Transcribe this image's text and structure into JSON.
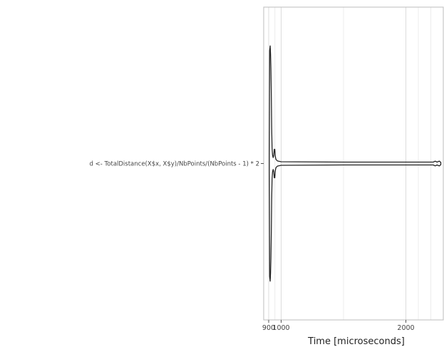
{
  "chart_data": {
    "type": "violin",
    "title": "",
    "xlabel": "Time [microseconds]",
    "ylabel": "",
    "orientation": "horizontal",
    "xlim": [
      860,
      2300
    ],
    "grid": true,
    "categories": [
      "d <- TotalDistance(X$x, X$y)/NbPoints/(NbPoints - 1) * 2"
    ],
    "x_ticks": [
      {
        "value": 900,
        "label": "900"
      },
      {
        "value": 1000,
        "label": "1000"
      },
      {
        "value": 2000,
        "label": "2000"
      }
    ],
    "minor_gridlines": [
      950,
      1500,
      2100,
      2200
    ],
    "series": [
      {
        "category_index": 0,
        "color": "#222222",
        "density_profile": [
          {
            "x": 905,
            "half_width": 0.06
          },
          {
            "x": 908,
            "half_width": 0.95
          },
          {
            "x": 912,
            "half_width": 0.99
          },
          {
            "x": 915,
            "half_width": 0.92
          },
          {
            "x": 918,
            "half_width": 0.8
          },
          {
            "x": 921,
            "half_width": 0.58
          },
          {
            "x": 924,
            "half_width": 0.3
          },
          {
            "x": 927,
            "half_width": 0.13
          },
          {
            "x": 931,
            "half_width": 0.07
          },
          {
            "x": 936,
            "half_width": 0.05
          },
          {
            "x": 941,
            "half_width": 0.07
          },
          {
            "x": 945,
            "half_width": 0.12
          },
          {
            "x": 949,
            "half_width": 0.12
          },
          {
            "x": 953,
            "half_width": 0.06
          },
          {
            "x": 958,
            "half_width": 0.035
          },
          {
            "x": 970,
            "half_width": 0.022
          },
          {
            "x": 1000,
            "half_width": 0.015
          },
          {
            "x": 1500,
            "half_width": 0.012
          },
          {
            "x": 2220,
            "half_width": 0.012
          },
          {
            "x": 2235,
            "half_width": 0.02
          },
          {
            "x": 2250,
            "half_width": 0.012
          },
          {
            "x": 2268,
            "half_width": 0.02
          },
          {
            "x": 2280,
            "half_width": 0.01
          }
        ]
      }
    ]
  }
}
